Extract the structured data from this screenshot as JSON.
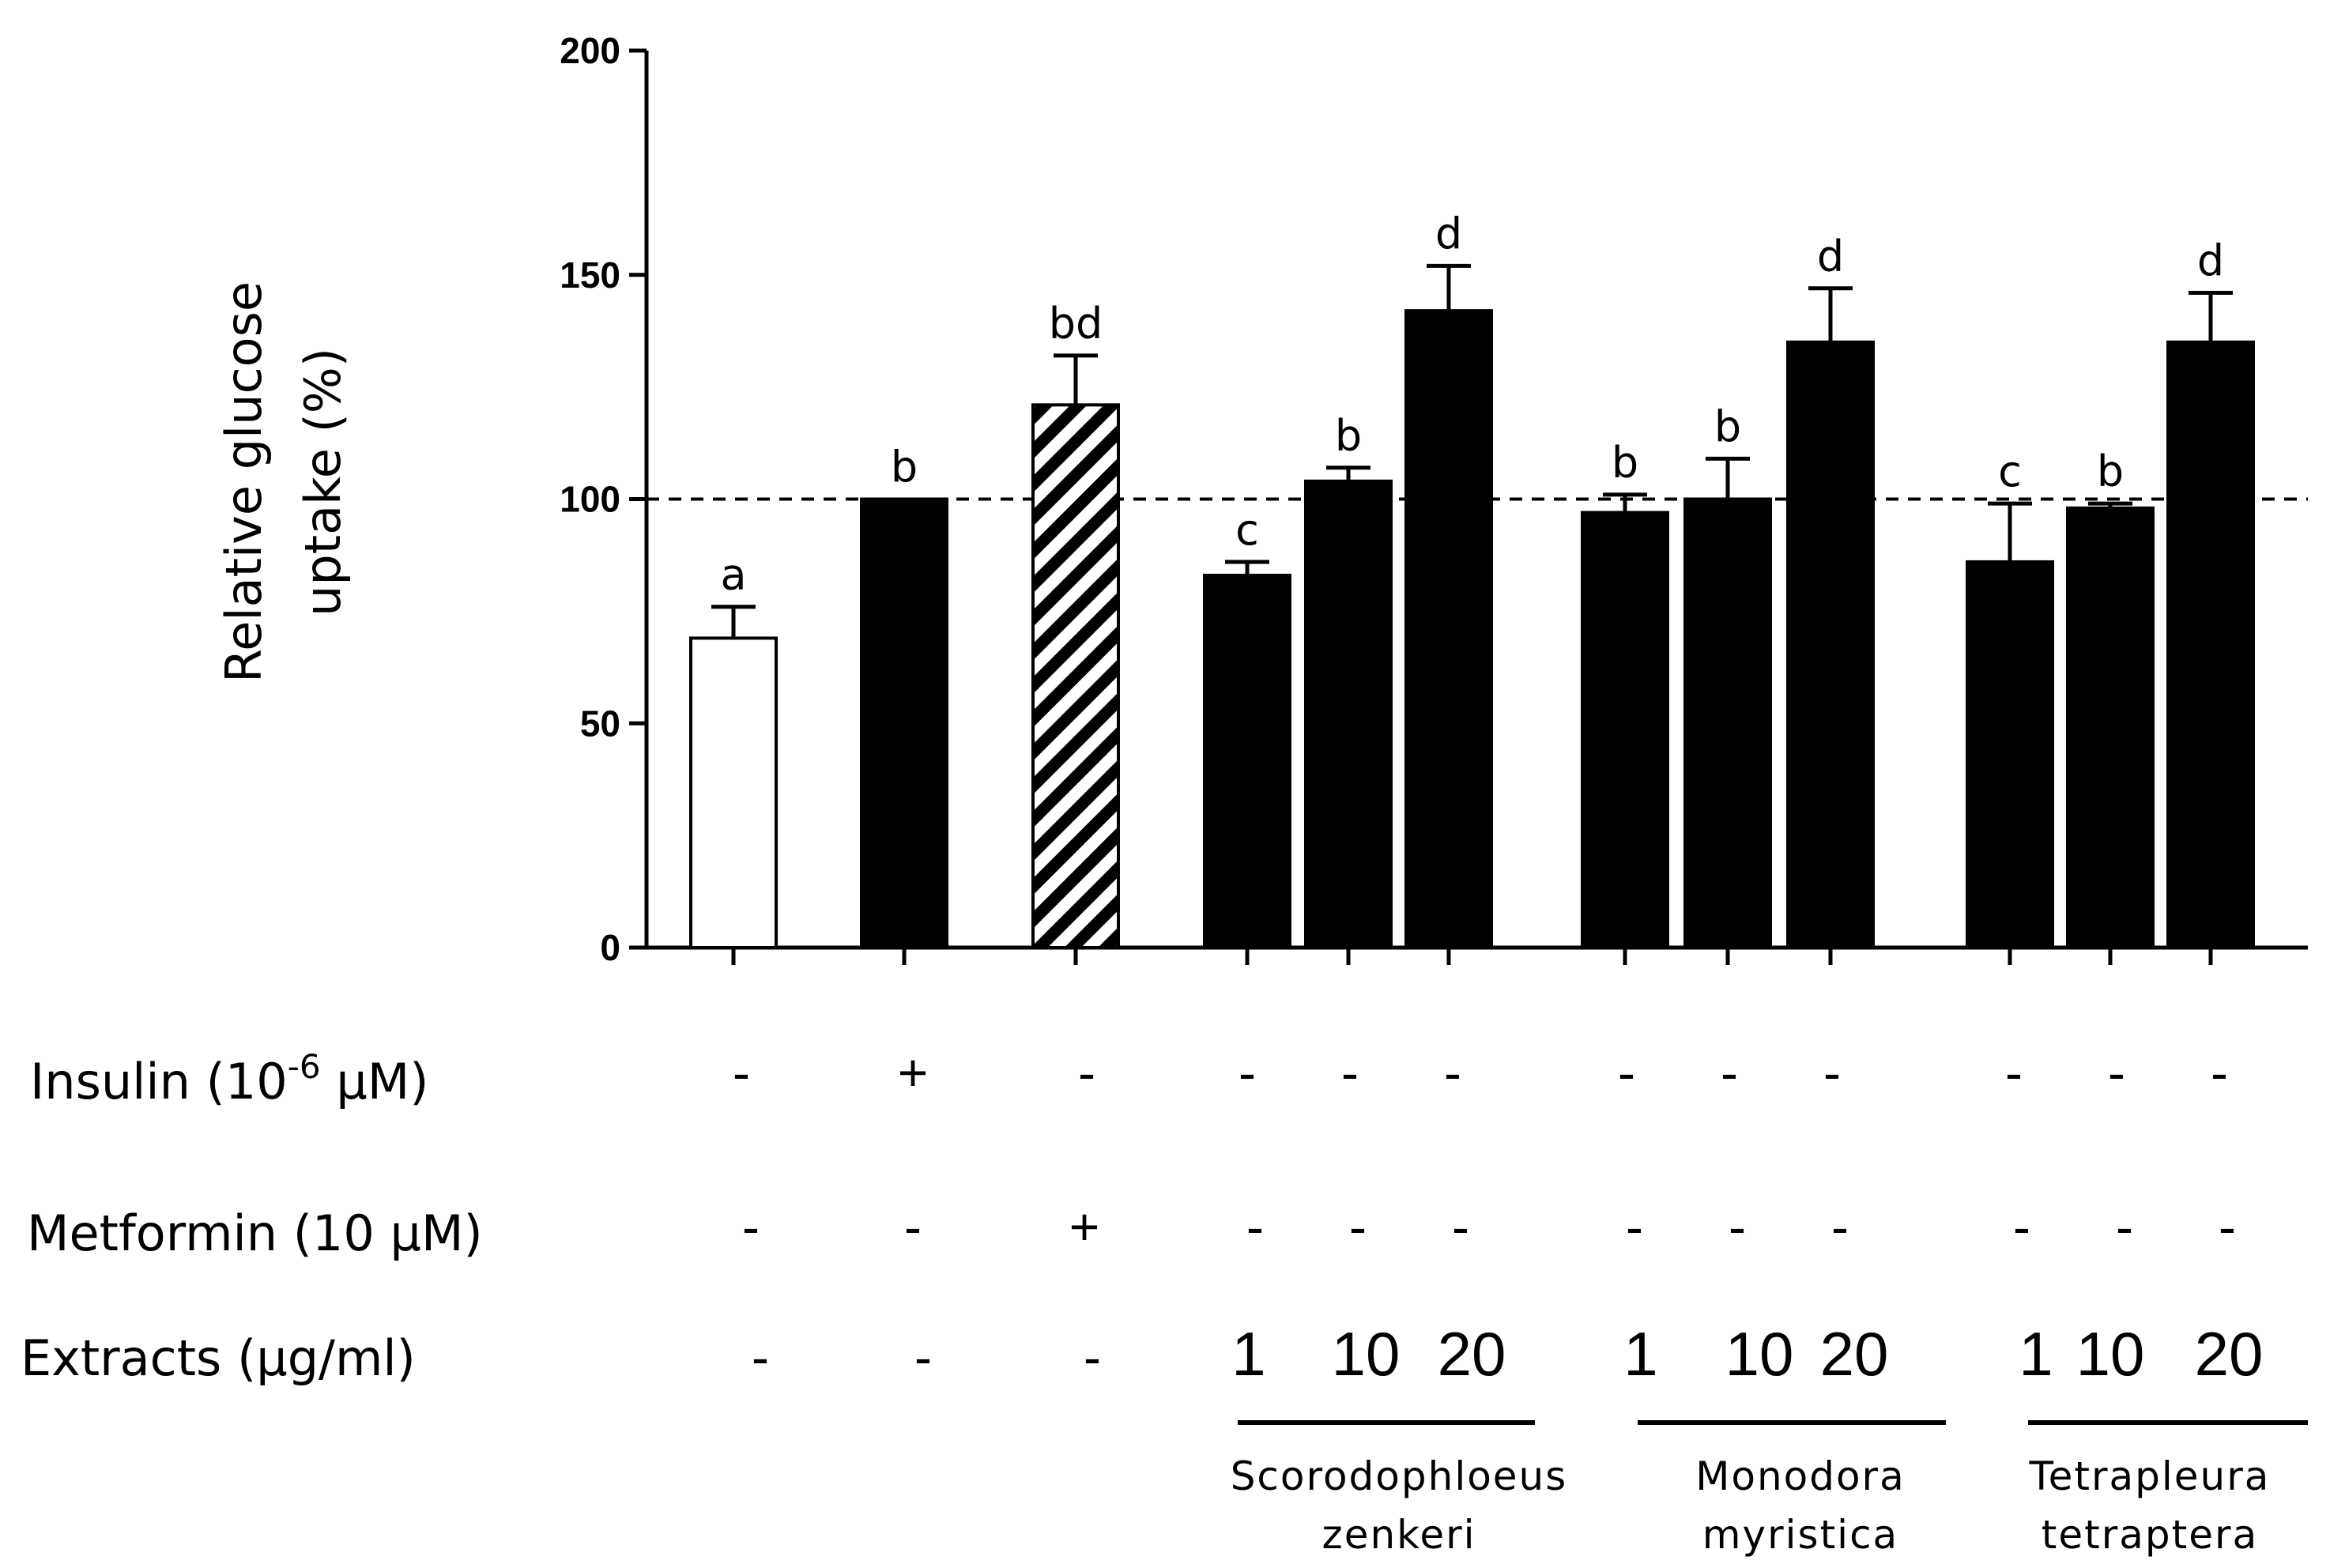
{
  "chart_data": {
    "type": "bar",
    "ylabel_lines": [
      "Relative glucose",
      "uptake  (%)"
    ],
    "ylim": [
      0,
      200
    ],
    "yticks": [
      "0",
      "50",
      "100",
      "150",
      "200"
    ],
    "yticks_values": [
      0,
      50,
      100,
      150,
      200
    ],
    "reference_line": 100,
    "series": [
      {
        "name": "Relative glucose uptake (%)",
        "values": [
          69,
          100,
          121,
          83,
          104,
          142,
          97,
          100,
          135,
          86,
          98,
          135
        ],
        "errors": [
          7,
          0,
          11,
          3,
          3,
          10,
          4,
          9,
          12,
          13,
          1,
          11
        ],
        "significance": [
          "a",
          "b",
          "bd",
          "c",
          "b",
          "d",
          "b",
          "b",
          "d",
          "c",
          "b",
          "d"
        ],
        "fills": [
          "white",
          "black",
          "hatched",
          "black",
          "black",
          "black",
          "black",
          "black",
          "black",
          "black",
          "black",
          "black"
        ]
      }
    ],
    "treatment_rows": [
      {
        "label_pre": "Insulin (10",
        "label_sup": "-6",
        "label_post": " μM)",
        "marks": [
          "-",
          "+",
          "-",
          "-",
          "-",
          "-",
          "-",
          "-",
          "-",
          "-",
          "-",
          "-"
        ]
      },
      {
        "label": "Metformin (10 μM)",
        "marks": [
          "-",
          "-",
          "+",
          "-",
          "-",
          "-",
          "-",
          "-",
          "-",
          "-",
          "-",
          "-"
        ]
      },
      {
        "label": "Extracts (μg/ml)",
        "marks": [
          "-",
          "-",
          "-",
          "1",
          "10",
          "20",
          "1",
          "10",
          "20",
          "1",
          "10",
          "20"
        ]
      }
    ],
    "groups": [
      {
        "name_lines": [
          "Scorodophloeus",
          "zenkeri"
        ],
        "bars": [
          3,
          4,
          5
        ]
      },
      {
        "name_lines": [
          "Monodora",
          "myristica"
        ],
        "bars": [
          6,
          7,
          8
        ]
      },
      {
        "name_lines": [
          "Tetrapleura",
          "tetraptera"
        ],
        "bars": [
          9,
          10,
          11
        ]
      }
    ],
    "colors": {
      "bar": "#000000",
      "open_bar": "#ffffff",
      "axis": "#000000"
    }
  }
}
